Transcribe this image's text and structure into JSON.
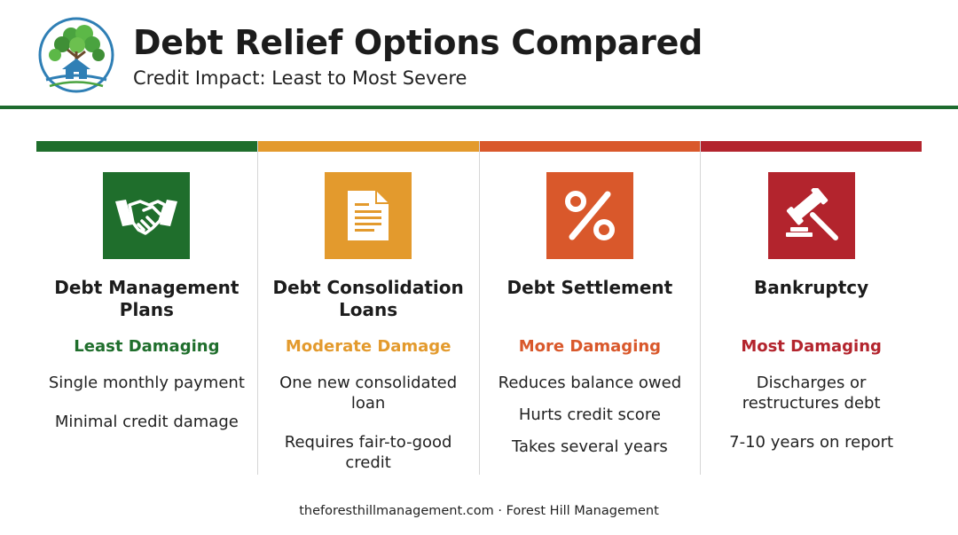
{
  "header": {
    "title": "Debt Relief Options Compared",
    "subtitle": "Credit Impact: Least to Most Severe",
    "rule_color": "#1e6b2e"
  },
  "options": [
    {
      "title": "Debt Management Plans",
      "rating": "Least Damaging",
      "color": "#1f6e2c",
      "icon": "handshake-icon",
      "points": [
        "Single monthly payment",
        "Minimal credit damage"
      ]
    },
    {
      "title": "Debt Consolidation Loans",
      "rating": "Moderate Damage",
      "color": "#e39a2d",
      "icon": "document-icon",
      "points": [
        "One new consolidated loan",
        "Requires fair-to-good credit"
      ]
    },
    {
      "title": "Debt Settlement",
      "rating": "More Damaging",
      "color": "#d9582b",
      "icon": "percent-icon",
      "points": [
        "Reduces balance owed",
        "Hurts credit score",
        "Takes several years"
      ]
    },
    {
      "title": "Bankruptcy",
      "rating": "Most Damaging",
      "color": "#b3242d",
      "icon": "gavel-icon",
      "points": [
        "Discharges or restructures debt",
        "7-10 years on report"
      ]
    }
  ],
  "footer": {
    "text": "theforesthillmanagement.com · Forest Hill Management"
  }
}
